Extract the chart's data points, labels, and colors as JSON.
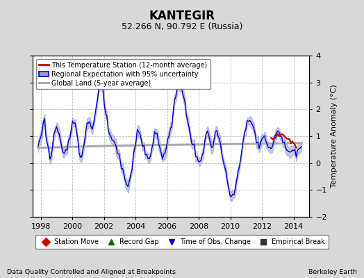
{
  "title": "KANTEGIR",
  "subtitle": "52.266 N, 90.792 E (Russia)",
  "ylabel": "Temperature Anomaly (°C)",
  "xlabel_left": "Data Quality Controlled and Aligned at Breakpoints",
  "xlabel_right": "Berkeley Earth",
  "ylim": [
    -2,
    4
  ],
  "xlim": [
    1997.5,
    2015.0
  ],
  "xticks": [
    1998,
    2000,
    2002,
    2004,
    2006,
    2008,
    2010,
    2012,
    2014
  ],
  "yticks": [
    -2,
    -1,
    0,
    1,
    2,
    3,
    4
  ],
  "bg_color": "#d8d8d8",
  "plot_bg_color": "#ffffff",
  "grid_color": "#bbbbbb",
  "regional_color": "#0000cc",
  "regional_fill_color": "#9999dd",
  "station_color": "#cc0000",
  "global_color": "#aaaaaa",
  "title_fontsize": 12,
  "subtitle_fontsize": 9,
  "tick_fontsize": 8,
  "label_fontsize": 8,
  "legend1_labels": [
    "This Temperature Station (12-month average)",
    "Regional Expectation with 95% uncertainty",
    "Global Land (5-year average)"
  ],
  "legend2_items": [
    {
      "label": "Station Move",
      "marker": "D",
      "color": "#cc0000"
    },
    {
      "label": "Record Gap",
      "marker": "^",
      "color": "#006600"
    },
    {
      "label": "Time of Obs. Change",
      "marker": "v",
      "color": "#0000cc"
    },
    {
      "label": "Empirical Break",
      "marker": "s",
      "color": "#333333"
    }
  ]
}
